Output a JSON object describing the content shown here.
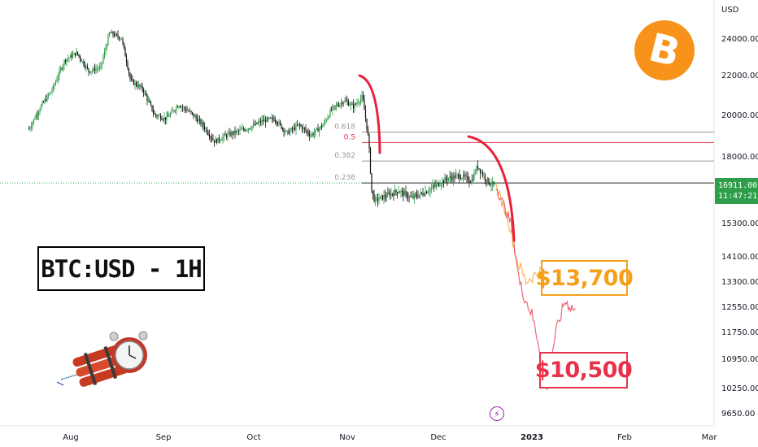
{
  "chart_data": {
    "type": "line",
    "title": "BTC:USD - 1H",
    "currency": "USD",
    "yaxis_unit": "USD",
    "yticks": [
      24000,
      22000,
      20000,
      18000,
      15300,
      14100,
      13300,
      12550,
      11750,
      10950,
      10250,
      9650
    ],
    "ytick_labels": [
      "24000.00",
      "22000.00",
      "20000.00",
      "18000.00",
      "15300.00",
      "14100.00",
      "13300.00",
      "12550.00",
      "11750.00",
      "10950.00",
      "10250.00",
      "9650.00"
    ],
    "xtick_labels": [
      "Aug",
      "Sep",
      "Oct",
      "Nov",
      "Dec",
      "2023",
      "Feb",
      "Mar"
    ],
    "current_price": "16911.00",
    "countdown": "11:47:21",
    "fib_levels": [
      {
        "label": "0.618",
        "value": 19150
      },
      {
        "label": "0.5",
        "value": 18650
      },
      {
        "label": "0.382",
        "value": 17800
      },
      {
        "label": "0.236",
        "value": 16911
      }
    ],
    "targets": [
      "$13,700",
      "$10,500"
    ],
    "series": [
      {
        "values": [
          [
            "2022-07-18",
            19300
          ],
          [
            "2022-07-22",
            20400
          ],
          [
            "2022-07-26",
            21300
          ],
          [
            "2022-07-30",
            22800
          ],
          [
            "2022-08-03",
            23200
          ],
          [
            "2022-08-07",
            22200
          ],
          [
            "2022-08-11",
            22400
          ],
          [
            "2022-08-14",
            24300
          ],
          [
            "2022-08-18",
            24000
          ],
          [
            "2022-08-21",
            21700
          ],
          [
            "2022-08-25",
            21300
          ],
          [
            "2022-08-29",
            20000
          ],
          [
            "2022-09-02",
            19800
          ],
          [
            "2022-09-06",
            20500
          ],
          [
            "2022-09-10",
            20100
          ],
          [
            "2022-09-14",
            19500
          ],
          [
            "2022-09-18",
            18700
          ],
          [
            "2022-09-22",
            19000
          ],
          [
            "2022-09-26",
            19200
          ],
          [
            "2022-09-30",
            19400
          ],
          [
            "2022-10-04",
            19700
          ],
          [
            "2022-10-08",
            19800
          ],
          [
            "2022-10-12",
            19100
          ],
          [
            "2022-10-16",
            19500
          ],
          [
            "2022-10-20",
            19000
          ],
          [
            "2022-10-24",
            19500
          ],
          [
            "2022-10-27",
            20300
          ],
          [
            "2022-10-31",
            20700
          ],
          [
            "2022-11-03",
            20400
          ],
          [
            "2022-11-06",
            20900
          ],
          [
            "2022-11-08",
            18800
          ],
          [
            "2022-11-09",
            16600
          ],
          [
            "2022-11-10",
            16200
          ],
          [
            "2022-11-14",
            16400
          ],
          [
            "2022-11-18",
            16600
          ],
          [
            "2022-11-22",
            16300
          ],
          [
            "2022-11-26",
            16500
          ],
          [
            "2022-11-30",
            16800
          ],
          [
            "2022-12-04",
            17100
          ],
          [
            "2022-12-08",
            17200
          ],
          [
            "2022-12-12",
            17000
          ],
          [
            "2022-12-14",
            17600
          ],
          [
            "2022-12-16",
            17200
          ],
          [
            "2022-12-18",
            16900
          ],
          [
            "2022-12-20",
            16800
          ]
        ]
      },
      {
        "name": "$13,700",
        "values": [
          [
            "2022-12-20",
            16800
          ],
          [
            "2022-12-24",
            15500
          ],
          [
            "2022-12-27",
            14000
          ],
          [
            "2022-12-30",
            13300
          ],
          [
            "2023-01-02",
            13500
          ],
          [
            "2023-01-05",
            13700
          ],
          [
            "2023-01-08",
            13400
          ]
        ]
      },
      {
        "name": "$10,500",
        "values": [
          [
            "2022-12-20",
            16800
          ],
          [
            "2022-12-25",
            15300
          ],
          [
            "2022-12-28",
            13200
          ],
          [
            "2023-01-01",
            12300
          ],
          [
            "2023-01-03",
            11500
          ],
          [
            "2023-01-06",
            10300
          ],
          [
            "2023-01-09",
            11700
          ],
          [
            "2023-01-12",
            12700
          ],
          [
            "2023-01-16",
            12400
          ]
        ]
      }
    ],
    "annotations": [
      "0.618",
      "0.5",
      "0.382",
      "0.236"
    ],
    "colors": {
      "up": "#2e9e4a",
      "down": "#111111",
      "proj_orange": "#f5a01a",
      "proj_red": "#e8324b",
      "arc": "#e8203a",
      "fib_gray": "#9a9a9a",
      "fib_red": "#e8324b",
      "btc": "#f7931a"
    }
  }
}
